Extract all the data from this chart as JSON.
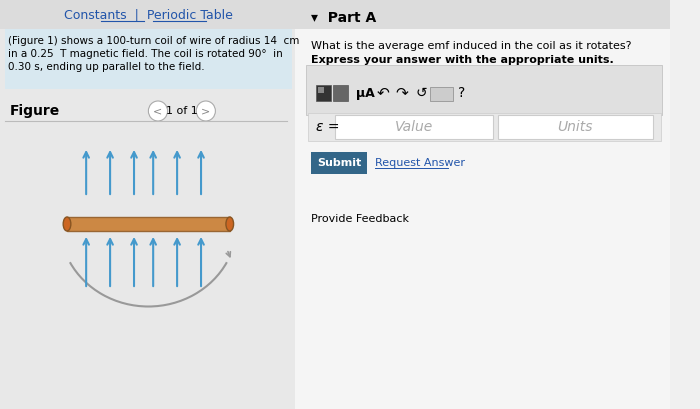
{
  "bg_color": "#f0f0f0",
  "left_panel_bg": "#e8e8e8",
  "right_panel_bg": "#f5f5f5",
  "top_links_text": "Constants  |  Periodic Table",
  "top_links_color": "#2255aa",
  "problem_text_line1": "(Figure 1) shows a 100-turn coil of wire of radius 14  cm",
  "problem_text_line2": "in a 0.25  T magnetic field. The coil is rotated 90°  in",
  "problem_text_line3": "0.30 s, ending up parallel to the field.",
  "figure_label": "Figure",
  "figure_nav": "1 of 1",
  "part_label": "▾  Part A",
  "question_line1": "What is the average emf induced in the coil as it rotates?",
  "question_line2": "Express your answer with the appropriate units.",
  "epsilon_label": "ε =",
  "value_placeholder": "Value",
  "units_placeholder": "Units",
  "submit_text": "Submit",
  "request_answer_text": "Request Answer",
  "provide_feedback_text": "Provide Feedback",
  "toolbar_symbols": "μA",
  "question_mark": "?",
  "arrow_color": "#4499cc",
  "coil_color": "#cc8844",
  "coil_end_color": "#cc6622",
  "gray_arrow_color": "#999999",
  "submit_bg": "#336688",
  "submit_text_color": "#ffffff",
  "input_box_color": "#ffffff",
  "input_border_color": "#cccccc",
  "toolbar_bg": "#dddddd"
}
